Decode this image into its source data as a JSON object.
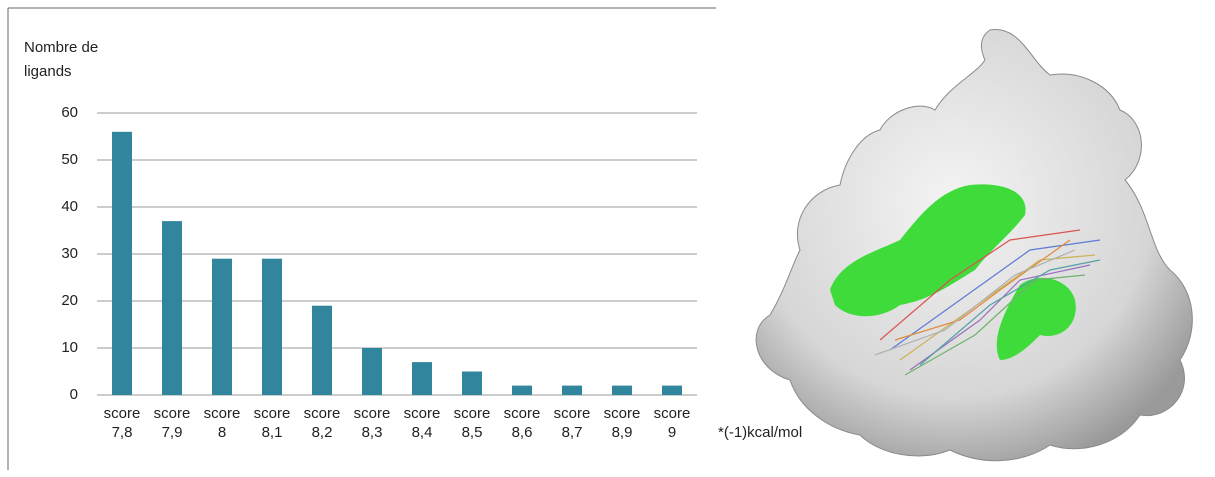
{
  "chart_data": {
    "type": "bar",
    "y_axis_label": "Nombre de ligands",
    "annotation": "*(-1)kcal/mol",
    "categories": [
      "score 7,8",
      "score 7,9",
      "score 8",
      "score 8,1",
      "score 8,2",
      "score 8,3",
      "score 8,4",
      "score 8,5",
      "score 8,6",
      "score 8,7",
      "score 8,9",
      "score 9"
    ],
    "values": [
      56,
      37,
      29,
      29,
      19,
      10,
      7,
      5,
      2,
      2,
      2,
      2
    ],
    "color": "#31859c",
    "ylim": [
      0,
      60
    ],
    "yticks": [
      0,
      10,
      20,
      30,
      40,
      50,
      60
    ],
    "grid": true
  }
}
